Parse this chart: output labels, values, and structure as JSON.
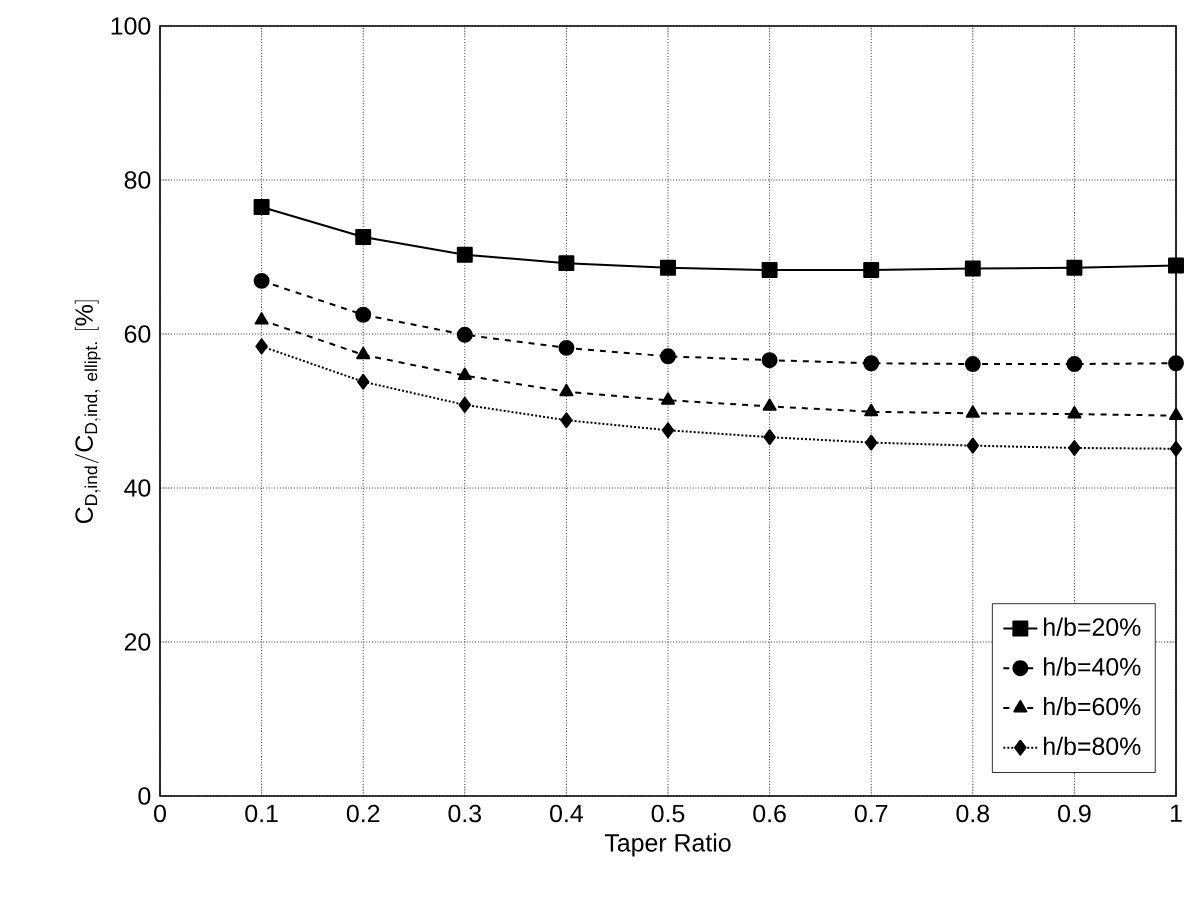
{
  "chart_data": {
    "type": "line",
    "xlabel": "Taper Ratio",
    "ylabel": "\\mathrm{C_{D,ind}/C_{D,ind,\\ ellipt.}\\ [\\%]}",
    "x": [
      0.1,
      0.2,
      0.3,
      0.4,
      0.5,
      0.6,
      0.7,
      0.8,
      0.9,
      1.0
    ],
    "series": [
      {
        "name": "h/b=20%",
        "color": "#000000",
        "marker": "square",
        "line_style": "solid",
        "values": [
          76.5,
          72.6,
          70.3,
          69.2,
          68.6,
          68.3,
          68.3,
          68.5,
          68.6,
          68.9
        ]
      },
      {
        "name": "h/b=40%",
        "color": "#000000",
        "marker": "circle",
        "line_style": "dashed",
        "values": [
          66.9,
          62.5,
          59.9,
          58.2,
          57.1,
          56.6,
          56.2,
          56.1,
          56.1,
          56.2
        ]
      },
      {
        "name": "h/b=60%",
        "color": "#000000",
        "marker": "triangle",
        "line_style": "dashed",
        "values": [
          61.8,
          57.3,
          54.6,
          52.5,
          51.4,
          50.6,
          49.9,
          49.7,
          49.6,
          49.4
        ]
      },
      {
        "name": "h/b=80%",
        "color": "#000000",
        "marker": "diamond",
        "line_style": "dotted",
        "values": [
          58.4,
          53.8,
          50.8,
          48.8,
          47.5,
          46.6,
          45.9,
          45.5,
          45.2,
          45.1
        ]
      }
    ],
    "xlim": [
      0,
      1
    ],
    "ylim": [
      0,
      100
    ],
    "xticks": [
      0,
      0.1,
      0.2,
      0.3,
      0.4,
      0.5,
      0.6,
      0.7,
      0.8,
      0.9,
      1
    ],
    "yticks": [
      0,
      20,
      40,
      60,
      80,
      100
    ],
    "grid": true,
    "legend": "bottom right"
  }
}
